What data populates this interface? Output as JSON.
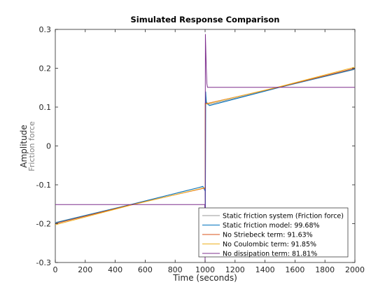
{
  "chart_data": {
    "type": "line",
    "title": "Simulated Response Comparison",
    "xlabel": "Time (seconds)",
    "ylabel": "Amplitude",
    "ylabel_secondary": "Friction force",
    "xlim": [
      0,
      2000
    ],
    "ylim": [
      -0.3,
      0.3
    ],
    "xticks": [
      0,
      200,
      400,
      600,
      800,
      1000,
      1200,
      1400,
      1600,
      1800,
      2000
    ],
    "yticks": [
      -0.3,
      -0.2,
      -0.1,
      0,
      0.1,
      0.2,
      0.3
    ],
    "grid": false,
    "legend_position": "bottom-right",
    "series": [
      {
        "name": "Static friction system (Friction force)",
        "color": "#999999",
        "points": [
          [
            0,
            -0.197
          ],
          [
            500,
            -0.151
          ],
          [
            960,
            -0.107
          ],
          [
            985,
            -0.105
          ],
          [
            995,
            -0.11
          ],
          [
            1000,
            -0.115
          ],
          [
            1002,
            -0.15
          ],
          [
            1004,
            0.13
          ],
          [
            1010,
            0.112
          ],
          [
            1030,
            0.107
          ],
          [
            1500,
            0.151
          ],
          [
            2000,
            0.197
          ]
        ]
      },
      {
        "name": "Static friction model: 99.68%",
        "color": "#0072BD",
        "points": [
          [
            0,
            -0.198
          ],
          [
            500,
            -0.151
          ],
          [
            950,
            -0.108
          ],
          [
            985,
            -0.104
          ],
          [
            995,
            -0.112
          ],
          [
            1000,
            -0.116
          ],
          [
            1002,
            -0.16
          ],
          [
            1004,
            0.14
          ],
          [
            1008,
            0.11
          ],
          [
            1030,
            0.104
          ],
          [
            1500,
            0.151
          ],
          [
            2000,
            0.198
          ]
        ]
      },
      {
        "name": "No Striebeck term: 91.63%",
        "color": "#D95319",
        "points": [
          [
            0,
            -0.2
          ],
          [
            500,
            -0.152
          ],
          [
            990,
            -0.109
          ],
          [
            1000,
            -0.109
          ],
          [
            1001,
            0.11
          ],
          [
            1010,
            0.109
          ],
          [
            1500,
            0.152
          ],
          [
            2000,
            0.2
          ]
        ]
      },
      {
        "name": "No Coulombic term: 91.85%",
        "color": "#EDB120",
        "points": [
          [
            0,
            -0.203
          ],
          [
            500,
            -0.153
          ],
          [
            990,
            -0.108
          ],
          [
            1000,
            -0.107
          ],
          [
            1001,
            0.107
          ],
          [
            1010,
            0.108
          ],
          [
            1500,
            0.153
          ],
          [
            2000,
            0.203
          ]
        ]
      },
      {
        "name": "No dissipation term: 81.81%",
        "color": "#7E2F8E",
        "points": [
          [
            0,
            -0.151
          ],
          [
            990,
            -0.151
          ],
          [
            998,
            -0.151
          ],
          [
            1000,
            -0.3
          ],
          [
            1002,
            0.288
          ],
          [
            1008,
            0.2
          ],
          [
            1012,
            0.16
          ],
          [
            1016,
            0.151
          ],
          [
            2000,
            0.151
          ]
        ]
      }
    ]
  }
}
